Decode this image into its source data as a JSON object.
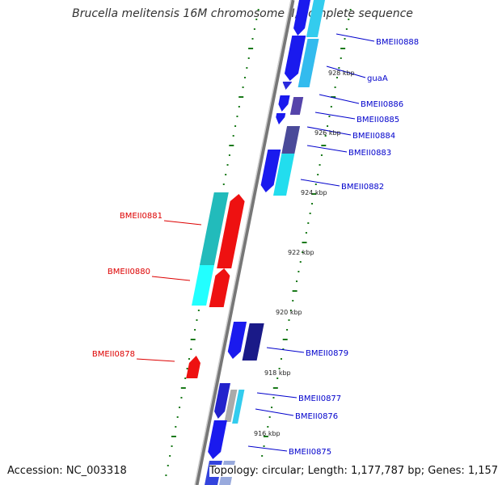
{
  "title": "Brucella melitensis 16M chromosome II, complete sequence",
  "footer": {
    "accession": "Accession: NC_003318",
    "topology": "Topology: circular; Length: 1,177,787 bp; Genes: 1,157"
  },
  "colors": {
    "forward_label": "#0000cc",
    "reverse_label": "#dd0000",
    "backbone": "#999999",
    "tick": "#1a7a1a"
  },
  "forward_genes": [
    "BMEII0888",
    "guaA",
    "BMEII0886",
    "BMEII0885",
    "BMEII0884",
    "BMEII0883",
    "BMEII0882",
    "BMEII0879",
    "BMEII0877",
    "BMEII0876",
    "BMEII0875"
  ],
  "reverse_genes": [
    "BMEII0881",
    "BMEII0880",
    "BMEII0878"
  ],
  "scale_labels": [
    "928 kbp",
    "926 kbp",
    "924 kbp",
    "922 kbp",
    "920 kbp",
    "918 kbp",
    "916 kbp"
  ]
}
